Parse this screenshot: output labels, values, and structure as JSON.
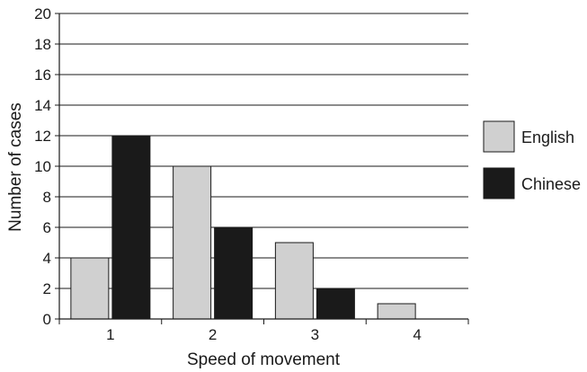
{
  "chart_data": {
    "type": "bar",
    "xlabel": "Speed of movement",
    "ylabel": "Number of cases",
    "categories": [
      "1",
      "2",
      "3",
      "4"
    ],
    "ylim": [
      0,
      20
    ],
    "yticks": [
      "0",
      "2",
      "4",
      "6",
      "8",
      "10",
      "12",
      "14",
      "16",
      "18",
      "20"
    ],
    "grid": true,
    "legend_position": "right",
    "series": [
      {
        "name": "English",
        "values": [
          4,
          10,
          5,
          1
        ],
        "color": "#d0d0d0"
      },
      {
        "name": "Chinese",
        "values": [
          12,
          6,
          2,
          0
        ],
        "color": "#1a1a1a"
      }
    ]
  }
}
